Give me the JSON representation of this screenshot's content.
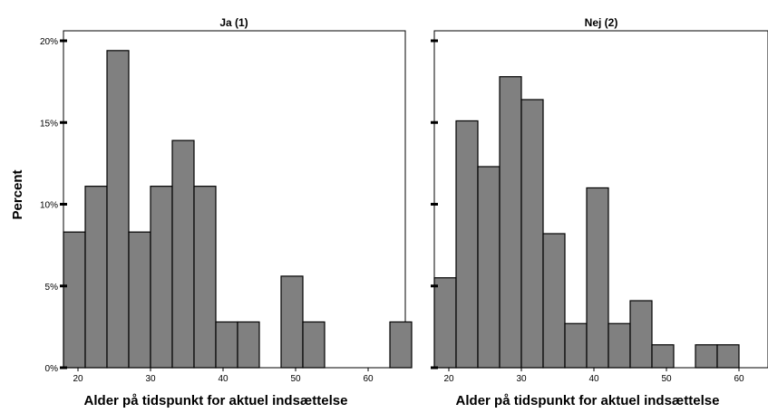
{
  "chart_data": {
    "type": "bar",
    "ylabel": "Percent",
    "ylim": [
      0,
      22
    ],
    "yticks": [
      "0%",
      "5%",
      "10%",
      "15%",
      "20%"
    ],
    "ytick_values": [
      0,
      5,
      10,
      15,
      20
    ],
    "xlim": [
      18,
      66
    ],
    "xticks": [
      20,
      30,
      40,
      50,
      60
    ],
    "bar_color": "#808080",
    "bar_stroke": "#000000",
    "panels": [
      {
        "title": "Ja  (1)",
        "xlabel": "Alder på tidspunkt for aktuel indsættelse",
        "bins": [
          {
            "x0": 18,
            "x1": 21,
            "value": 8.3
          },
          {
            "x0": 21,
            "x1": 24,
            "value": 11.1
          },
          {
            "x0": 24,
            "x1": 27,
            "value": 19.4
          },
          {
            "x0": 27,
            "x1": 30,
            "value": 8.3
          },
          {
            "x0": 30,
            "x1": 33,
            "value": 11.1
          },
          {
            "x0": 33,
            "x1": 36,
            "value": 13.9
          },
          {
            "x0": 36,
            "x1": 39,
            "value": 11.1
          },
          {
            "x0": 39,
            "x1": 42,
            "value": 2.8
          },
          {
            "x0": 42,
            "x1": 45,
            "value": 2.8
          },
          {
            "x0": 48,
            "x1": 51,
            "value": 5.6
          },
          {
            "x0": 51,
            "x1": 54,
            "value": 2.8
          },
          {
            "x0": 63,
            "x1": 66,
            "value": 2.8
          }
        ]
      },
      {
        "title": "Nej (2)",
        "xlabel": "Alder på tidspunkt for aktuel indsættelse",
        "bins": [
          {
            "x0": 18,
            "x1": 21,
            "value": 5.5
          },
          {
            "x0": 21,
            "x1": 24,
            "value": 15.1
          },
          {
            "x0": 24,
            "x1": 27,
            "value": 12.3
          },
          {
            "x0": 27,
            "x1": 30,
            "value": 17.8
          },
          {
            "x0": 30,
            "x1": 33,
            "value": 16.4
          },
          {
            "x0": 33,
            "x1": 36,
            "value": 8.2
          },
          {
            "x0": 36,
            "x1": 39,
            "value": 2.7
          },
          {
            "x0": 39,
            "x1": 42,
            "value": 11.0
          },
          {
            "x0": 42,
            "x1": 45,
            "value": 2.7
          },
          {
            "x0": 45,
            "x1": 48,
            "value": 4.1
          },
          {
            "x0": 48,
            "x1": 51,
            "value": 1.4
          },
          {
            "x0": 54,
            "x1": 57,
            "value": 1.4
          },
          {
            "x0": 57,
            "x1": 60,
            "value": 1.4
          }
        ]
      }
    ]
  }
}
